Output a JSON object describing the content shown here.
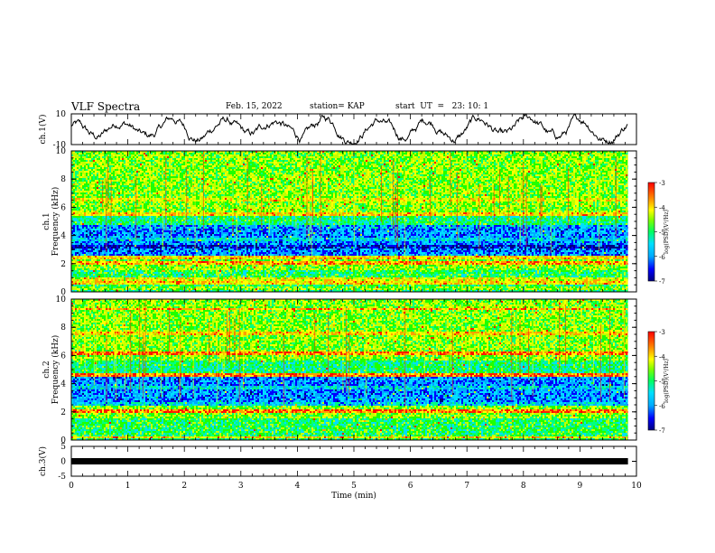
{
  "header": {
    "title": "VLF Spectra",
    "date": "Feb. 15, 2022",
    "station": "station= KAP",
    "start": "start  UT  =   23: 10: 1"
  },
  "colors": {
    "spectrogram_scale": [
      "#00007f",
      "#0000ff",
      "#00aaff",
      "#00e0ff",
      "#00ff80",
      "#20ff00",
      "#c0ff00",
      "#ffff00",
      "#ffa000",
      "#ff2000",
      "#ff0000"
    ],
    "trace": "#000000",
    "frame": "#000000"
  },
  "chart_data": [
    {
      "type": "line",
      "name": "ch1-waveform",
      "ylabel": "ch.1(V)",
      "ylim": [
        -10,
        10
      ],
      "yticks": [
        "10",
        "-10"
      ],
      "xlim": [
        0,
        10
      ],
      "x_end": 9.85,
      "description_values": "continuous waveform oscillating roughly between -9 and 10 V"
    },
    {
      "type": "heatmap",
      "name": "ch1-spectrogram",
      "ylabel": "ch.1",
      "ylabel2": "Frequency  (kHz)",
      "ylim": [
        0,
        10
      ],
      "yticks": [
        "0",
        "2",
        "4",
        "6",
        "8",
        "10"
      ],
      "xlim": [
        0,
        10
      ],
      "colorbar": {
        "label": "log(PSD)(V²/Hz)",
        "ticks": [
          "-3",
          "-4",
          "-5",
          "-6",
          "-7"
        ],
        "range": [
          -7,
          -3
        ]
      },
      "bands": [
        {
          "f": 0.3,
          "level": 0.55
        },
        {
          "f": 0.6,
          "level": 0.7
        },
        {
          "f": 0.9,
          "level": 0.65
        },
        {
          "f": 2.0,
          "level": 0.75
        },
        {
          "f": 2.4,
          "level": 0.7
        },
        {
          "f": 2.9,
          "level": 0.2
        },
        {
          "f": 3.2,
          "level": 0.1
        },
        {
          "f": 3.7,
          "level": 0.3
        },
        {
          "f": 4.6,
          "level": 0.25
        },
        {
          "f": 5.5,
          "level": 0.7
        },
        {
          "f": 6.5,
          "level": 0.65
        },
        {
          "f": 8.0,
          "level": 0.55
        }
      ]
    },
    {
      "type": "heatmap",
      "name": "ch2-spectrogram",
      "ylabel": "ch.2",
      "ylabel2": "Frequency  (kHz)",
      "ylim": [
        0,
        10
      ],
      "yticks": [
        "0",
        "2",
        "4",
        "6",
        "8",
        "10"
      ],
      "xlim": [
        0,
        10
      ],
      "colorbar": {
        "label": "log(PSD)(V²/Hz)",
        "ticks": [
          "-3",
          "-4",
          "-5",
          "-6",
          "-7"
        ],
        "range": [
          -7,
          -3
        ]
      },
      "bands": [
        {
          "f": 0.2,
          "level": 0.7
        },
        {
          "f": 2.0,
          "level": 0.8
        },
        {
          "f": 2.6,
          "level": 0.3
        },
        {
          "f": 3.7,
          "level": 0.3
        },
        {
          "f": 4.6,
          "level": 0.8
        },
        {
          "f": 6.2,
          "level": 0.8
        },
        {
          "f": 7.6,
          "level": 0.7
        },
        {
          "f": 9.3,
          "level": 0.75
        }
      ]
    },
    {
      "type": "line",
      "name": "ch3-signal",
      "ylabel": "ch.3(V)",
      "ylim": [
        -5,
        5
      ],
      "yticks": [
        "5",
        "0",
        "-5"
      ],
      "xlim": [
        0,
        10
      ],
      "x_end": 9.85,
      "level": 0,
      "xlabel": "Time  (min)",
      "xticks": [
        "0",
        "1",
        "2",
        "3",
        "4",
        "5",
        "6",
        "7",
        "8",
        "9",
        "10"
      ]
    }
  ]
}
